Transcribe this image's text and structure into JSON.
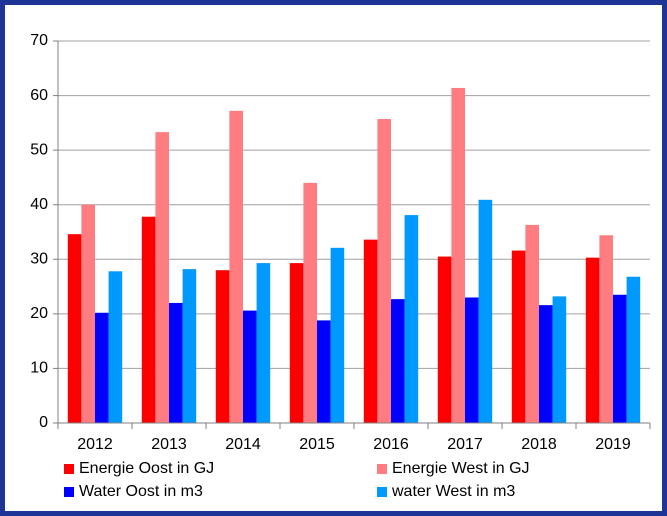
{
  "chart_data": {
    "type": "bar",
    "categories": [
      "2012",
      "2013",
      "2014",
      "2015",
      "2016",
      "2017",
      "2018",
      "2019"
    ],
    "series": [
      {
        "name": "Energie Oost in GJ",
        "color": "#ff0000",
        "values": [
          34.6,
          37.8,
          28,
          29.3,
          33.6,
          30.5,
          31.6,
          30.3
        ]
      },
      {
        "name": "Energie West in GJ",
        "color": "#ff7c80",
        "values": [
          40,
          53.3,
          57.2,
          44,
          55.7,
          61.4,
          36.3,
          34.4
        ]
      },
      {
        "name": "Water Oost in m3",
        "color": "#0000ff",
        "values": [
          20.2,
          22,
          20.6,
          18.8,
          22.7,
          23,
          21.6,
          23.5
        ]
      },
      {
        "name": "water West in m3",
        "color": "#0099ff",
        "values": [
          27.8,
          28.2,
          29.3,
          32.1,
          38.1,
          40.9,
          23.2,
          26.8
        ]
      }
    ],
    "ylim": [
      0,
      70
    ],
    "yticks": [
      0,
      10,
      20,
      30,
      40,
      50,
      60,
      70
    ],
    "grid": true,
    "legend": "bottom"
  }
}
